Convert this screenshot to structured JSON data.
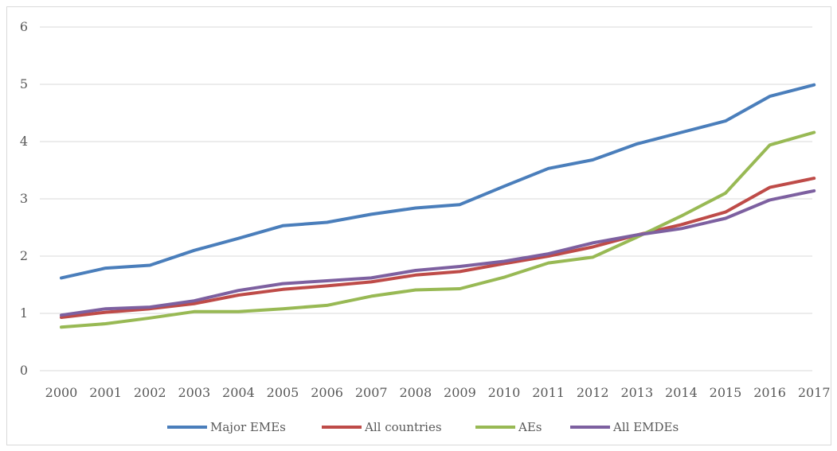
{
  "chart_data": {
    "type": "line",
    "x": [
      2000,
      2001,
      2002,
      2003,
      2004,
      2005,
      2006,
      2007,
      2008,
      2009,
      2010,
      2011,
      2012,
      2013,
      2014,
      2015,
      2016,
      2017
    ],
    "x_tick_labels": [
      "2000",
      "2001",
      "2002",
      "2003",
      "2004",
      "2005",
      "2006",
      "2007",
      "2008",
      "2009",
      "2010",
      "2011",
      "2012",
      "2013",
      "2014",
      "2015",
      "2016",
      "2017"
    ],
    "y_tick_labels": [
      "0",
      "1",
      "2",
      "3",
      "4",
      "5",
      "6"
    ],
    "ylim": [
      0,
      6
    ],
    "grid": true,
    "legend_position": "bottom",
    "series": [
      {
        "name": "Major EMEs",
        "color": "#4a7ebb",
        "values": [
          1.62,
          1.79,
          1.84,
          2.1,
          2.31,
          2.53,
          2.59,
          2.73,
          2.84,
          2.9,
          3.22,
          3.53,
          3.68,
          3.96,
          4.16,
          4.36,
          4.79,
          4.99
        ]
      },
      {
        "name": "All countries",
        "color": "#be4b48",
        "values": [
          0.93,
          1.02,
          1.08,
          1.17,
          1.32,
          1.42,
          1.48,
          1.55,
          1.67,
          1.73,
          1.87,
          2.0,
          2.16,
          2.37,
          2.55,
          2.77,
          3.2,
          3.36
        ]
      },
      {
        "name": "AEs",
        "color": "#98b954",
        "values": [
          0.76,
          0.82,
          0.92,
          1.03,
          1.03,
          1.08,
          1.14,
          1.3,
          1.41,
          1.43,
          1.63,
          1.88,
          1.98,
          2.33,
          2.7,
          3.1,
          3.94,
          4.16
        ]
      },
      {
        "name": "All EMDEs",
        "color": "#7d60a0",
        "values": [
          0.97,
          1.08,
          1.11,
          1.22,
          1.4,
          1.52,
          1.57,
          1.62,
          1.75,
          1.82,
          1.91,
          2.04,
          2.23,
          2.37,
          2.48,
          2.66,
          2.98,
          3.14
        ]
      }
    ]
  }
}
